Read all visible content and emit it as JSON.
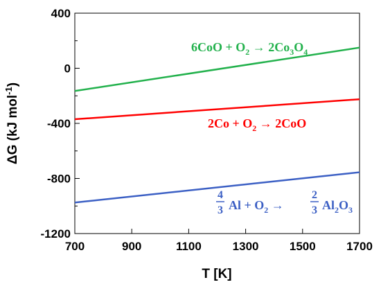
{
  "chart_data": {
    "type": "line",
    "xlabel": "T [K]",
    "ylabel": "ΔG (kJ mol",
    "ylabel_sup": "-1",
    "ylabel_close": ")",
    "xlim": [
      700,
      1700
    ],
    "ylim": [
      -1200,
      400
    ],
    "xticks": [
      "700",
      "900",
      "1100",
      "1300",
      "1500",
      "1700"
    ],
    "yticks": [
      "400",
      "0",
      "-400",
      "-800",
      "-1200"
    ],
    "grid": false,
    "series": [
      {
        "x": [
          700,
          1700
        ],
        "values": [
          -165,
          150
        ],
        "color": "#22b14c"
      },
      {
        "x": [
          700,
          1700
        ],
        "values": [
          -370,
          -225
        ],
        "color": "#ff0000"
      },
      {
        "x": [
          700,
          1700
        ],
        "values": [
          -975,
          -755
        ],
        "color": "#3b5fc4"
      }
    ],
    "annotations": {
      "green": {
        "p1": "6CoO + ",
        "o": "O",
        "o_sub": "2",
        "arrow": " → 2Co",
        "co_sub": "3",
        "o2": "O",
        "o2_sub": "4"
      },
      "red": {
        "p1": "2Co + ",
        "o": "O",
        "o_sub": "2",
        "arrow": " → 2CoO"
      },
      "blue": {
        "n1": "4",
        "d1": "3",
        "al": "Al + ",
        "o": "O",
        "o_sub": "2",
        "arrow": " →",
        "n2": "2",
        "d2": "3",
        "al2": "Al",
        "al2_sub": "2",
        "o3": "O",
        "o3_sub": "3"
      }
    }
  }
}
